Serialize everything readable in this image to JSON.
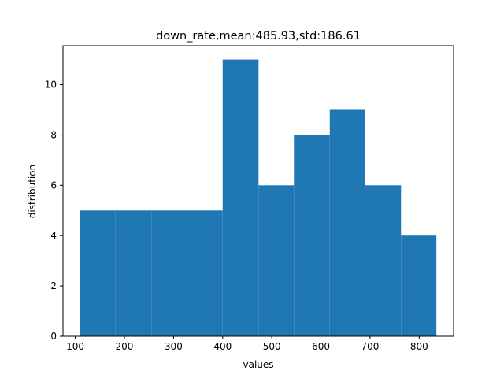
{
  "chart_data": {
    "type": "bar",
    "title": "down_rate,mean:485.93,std:186.61",
    "xlabel": "values",
    "ylabel": "distribution",
    "xlim": [
      75,
      870
    ],
    "ylim": [
      0,
      11.55
    ],
    "xticks": [
      100,
      200,
      300,
      400,
      500,
      600,
      700,
      800
    ],
    "yticks": [
      0,
      2,
      4,
      6,
      8,
      10
    ],
    "bins": [
      {
        "x0": 110,
        "x1": 182,
        "count": 5
      },
      {
        "x0": 182,
        "x1": 255,
        "count": 5
      },
      {
        "x0": 255,
        "x1": 327,
        "count": 5
      },
      {
        "x0": 327,
        "x1": 400,
        "count": 5
      },
      {
        "x0": 400,
        "x1": 473,
        "count": 11
      },
      {
        "x0": 473,
        "x1": 545,
        "count": 6
      },
      {
        "x0": 545,
        "x1": 618,
        "count": 8
      },
      {
        "x0": 618,
        "x1": 690,
        "count": 9
      },
      {
        "x0": 690,
        "x1": 763,
        "count": 6
      },
      {
        "x0": 763,
        "x1": 835,
        "count": 4
      }
    ],
    "bar_color": "#1f77b4",
    "grid": false,
    "legend": "none"
  }
}
